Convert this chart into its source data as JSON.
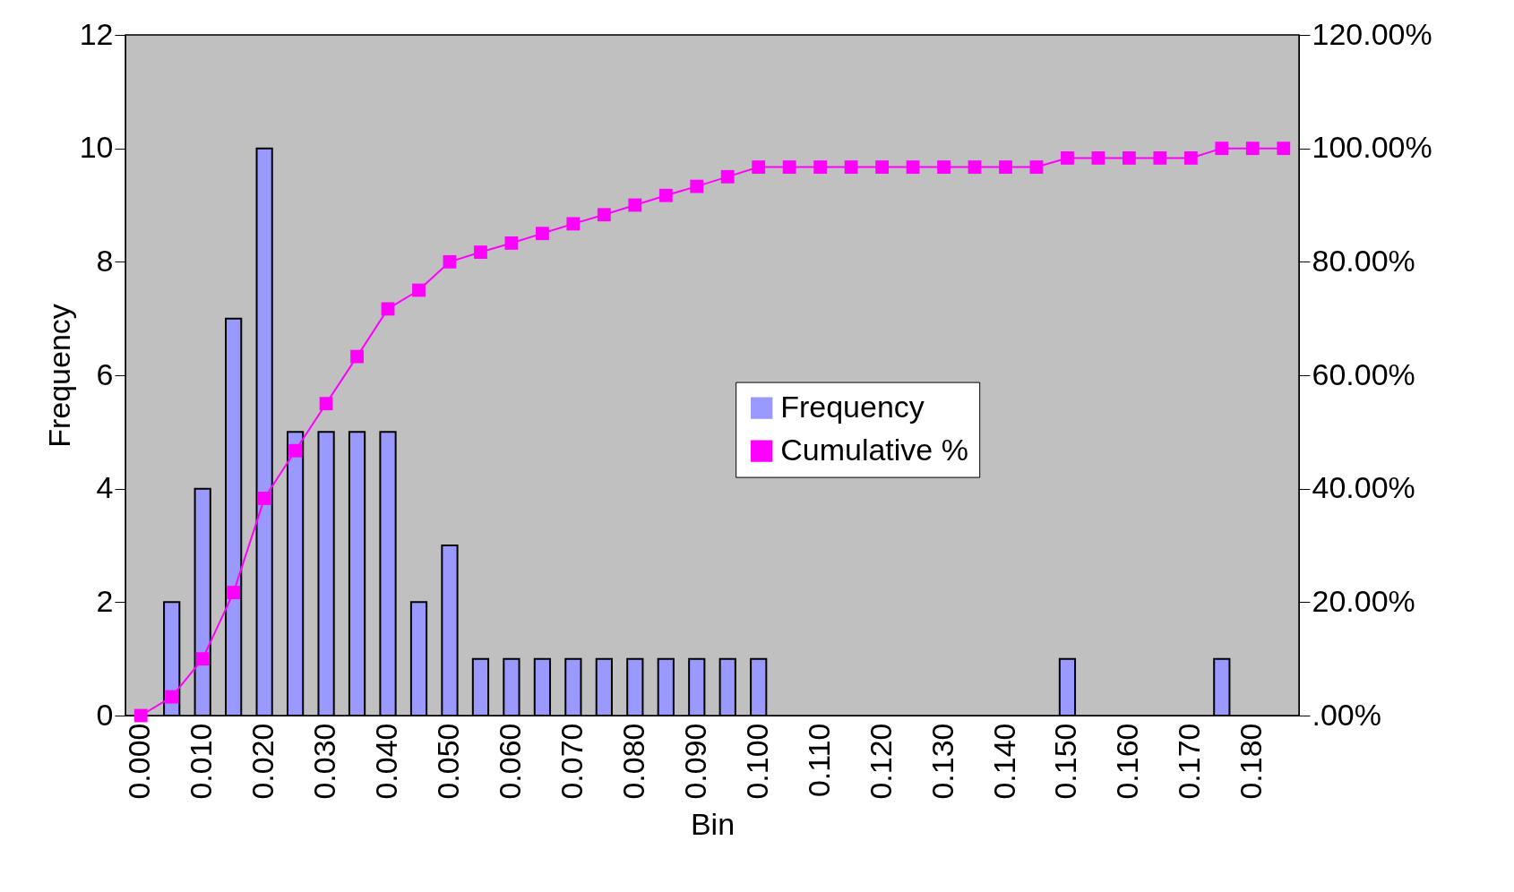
{
  "chart_data": {
    "type": "bar",
    "xlabel": "Bin",
    "ylabel": "Frequency",
    "categories": [
      "0.000",
      null,
      "0.010",
      null,
      "0.020",
      null,
      "0.030",
      null,
      "0.040",
      null,
      "0.050",
      null,
      "0.060",
      null,
      "0.070",
      null,
      "0.080",
      null,
      "0.090",
      null,
      "0.100",
      null,
      "0.110",
      null,
      "0.120",
      null,
      "0.130",
      null,
      "0.140",
      null,
      "0.150",
      null,
      "0.160",
      null,
      "0.170",
      null,
      "0.180",
      null
    ],
    "series": [
      {
        "name": "Frequency",
        "color": "#9999ff",
        "values": [
          0,
          2,
          4,
          7,
          10,
          5,
          5,
          5,
          5,
          2,
          3,
          1,
          1,
          1,
          1,
          1,
          1,
          1,
          1,
          1,
          1,
          0,
          0,
          0,
          0,
          0,
          0,
          0,
          0,
          0,
          1,
          0,
          0,
          0,
          0,
          1,
          0,
          0
        ]
      },
      {
        "name": "Cumulative %",
        "type": "line",
        "axis": "y2",
        "color": "#ff00ff",
        "values": [
          0,
          3.3,
          10,
          21.7,
          38.3,
          46.7,
          55,
          63.3,
          71.7,
          75,
          80,
          81.7,
          83.3,
          85,
          86.7,
          88.3,
          90,
          91.7,
          93.3,
          95,
          96.7,
          96.7,
          96.7,
          96.7,
          96.7,
          96.7,
          96.7,
          96.7,
          96.7,
          96.7,
          98.3,
          98.3,
          98.3,
          98.3,
          98.3,
          100,
          100,
          100
        ]
      }
    ],
    "ylim": [
      0,
      12
    ],
    "yticks": [
      0,
      2,
      4,
      6,
      8,
      10,
      12
    ],
    "y2lim": [
      0,
      120
    ],
    "y2ticks": [
      {
        "value": 0,
        "label": ".00%"
      },
      {
        "value": 20,
        "label": "20.00%"
      },
      {
        "value": 40,
        "label": "40.00%"
      },
      {
        "value": 60,
        "label": "60.00%"
      },
      {
        "value": 80,
        "label": "80.00%"
      },
      {
        "value": 100,
        "label": "100.00%"
      },
      {
        "value": 120,
        "label": "120.00%"
      }
    ],
    "marker": "square",
    "grid": false,
    "legend": "center"
  }
}
